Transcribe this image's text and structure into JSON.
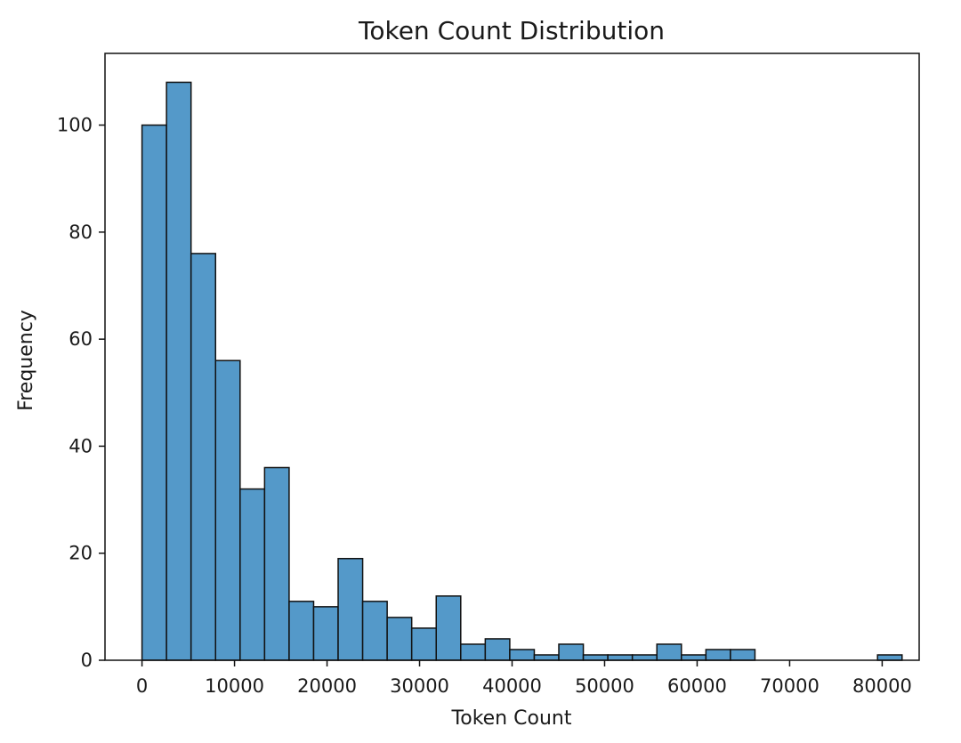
{
  "chart_data": {
    "type": "bar",
    "title": "Token Count Distribution",
    "xlabel": "Token Count",
    "ylabel": "Frequency",
    "xlim": [
      -4000,
      84000
    ],
    "ylim": [
      0,
      113.4
    ],
    "bin_width": 2650,
    "bin_start": 0,
    "x_ticks": [
      0,
      10000,
      20000,
      30000,
      40000,
      50000,
      60000,
      70000,
      80000
    ],
    "x_tick_labels": [
      "0",
      "10000",
      "20000",
      "30000",
      "40000",
      "50000",
      "60000",
      "70000",
      "80000"
    ],
    "y_ticks": [
      0,
      20,
      40,
      60,
      80,
      100
    ],
    "y_tick_labels": [
      "0",
      "20",
      "40",
      "60",
      "80",
      "100"
    ],
    "values": [
      100,
      108,
      76,
      56,
      32,
      36,
      11,
      10,
      19,
      11,
      8,
      6,
      12,
      3,
      4,
      2,
      1,
      3,
      1,
      1,
      1,
      3,
      1,
      2,
      2,
      0,
      0,
      0,
      0,
      0,
      1
    ],
    "grid": false,
    "colors": {
      "bar_fill": "#5499c9",
      "bar_edge": "#111111",
      "axis": "#111111"
    }
  }
}
